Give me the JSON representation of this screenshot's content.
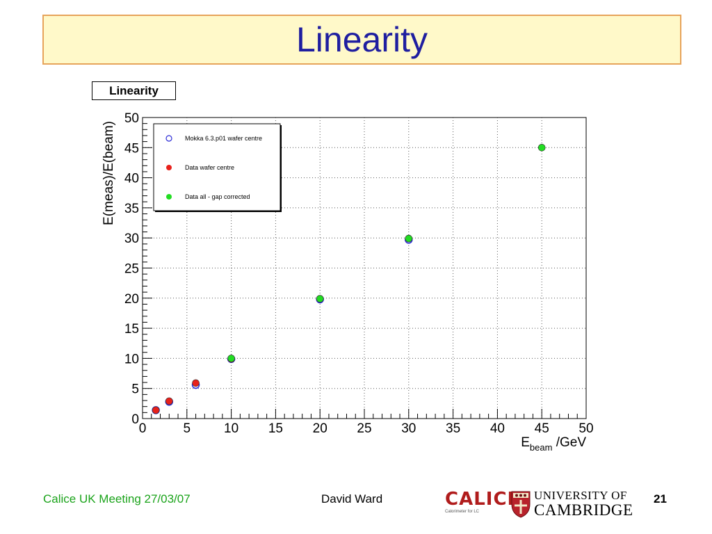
{
  "slide": {
    "title": "Linearity",
    "footer_left": "Calice UK Meeting 27/03/07",
    "footer_author": "David Ward",
    "page_number": "21",
    "logo_calice": "CALICE",
    "logo_calice_sub": "Calorimeter for LC",
    "logo_university_line1": "UNIVERSITY OF",
    "logo_university_line2": "CAMBRIDGE"
  },
  "chart_data": {
    "type": "scatter",
    "title": "Linearity",
    "ylabel": "E(meas)/E(beam)",
    "xlabel_main": "E",
    "xlabel_sub": "beam",
    "xlabel_unit": "/GeV",
    "xlim": [
      0,
      50
    ],
    "ylim": [
      0,
      50
    ],
    "xticks": [
      0,
      5,
      10,
      15,
      20,
      25,
      30,
      35,
      40,
      45,
      50
    ],
    "yticks": [
      0,
      5,
      10,
      15,
      20,
      25,
      30,
      35,
      40,
      45,
      50
    ],
    "grid": true,
    "legend_position": "top-left",
    "series": [
      {
        "name": "Mokka 6.3.p01 wafer centre",
        "marker": "open-circle",
        "color": "#2b2bd6",
        "x": [
          1.5,
          3,
          6,
          10,
          20,
          30
        ],
        "y": [
          1.4,
          2.8,
          5.6,
          9.9,
          19.8,
          29.7
        ]
      },
      {
        "name": "Data wafer centre",
        "marker": "filled-circle",
        "color": "#e8211b",
        "x": [
          1.5,
          3,
          6,
          10,
          20,
          30
        ],
        "y": [
          1.4,
          2.9,
          5.9,
          9.9,
          19.9,
          29.9
        ]
      },
      {
        "name": "Data all - gap corrected",
        "marker": "filled-circle",
        "color": "#22dd22",
        "x": [
          10,
          20,
          30,
          45
        ],
        "y": [
          10.0,
          19.9,
          29.9,
          45.0
        ]
      }
    ]
  }
}
